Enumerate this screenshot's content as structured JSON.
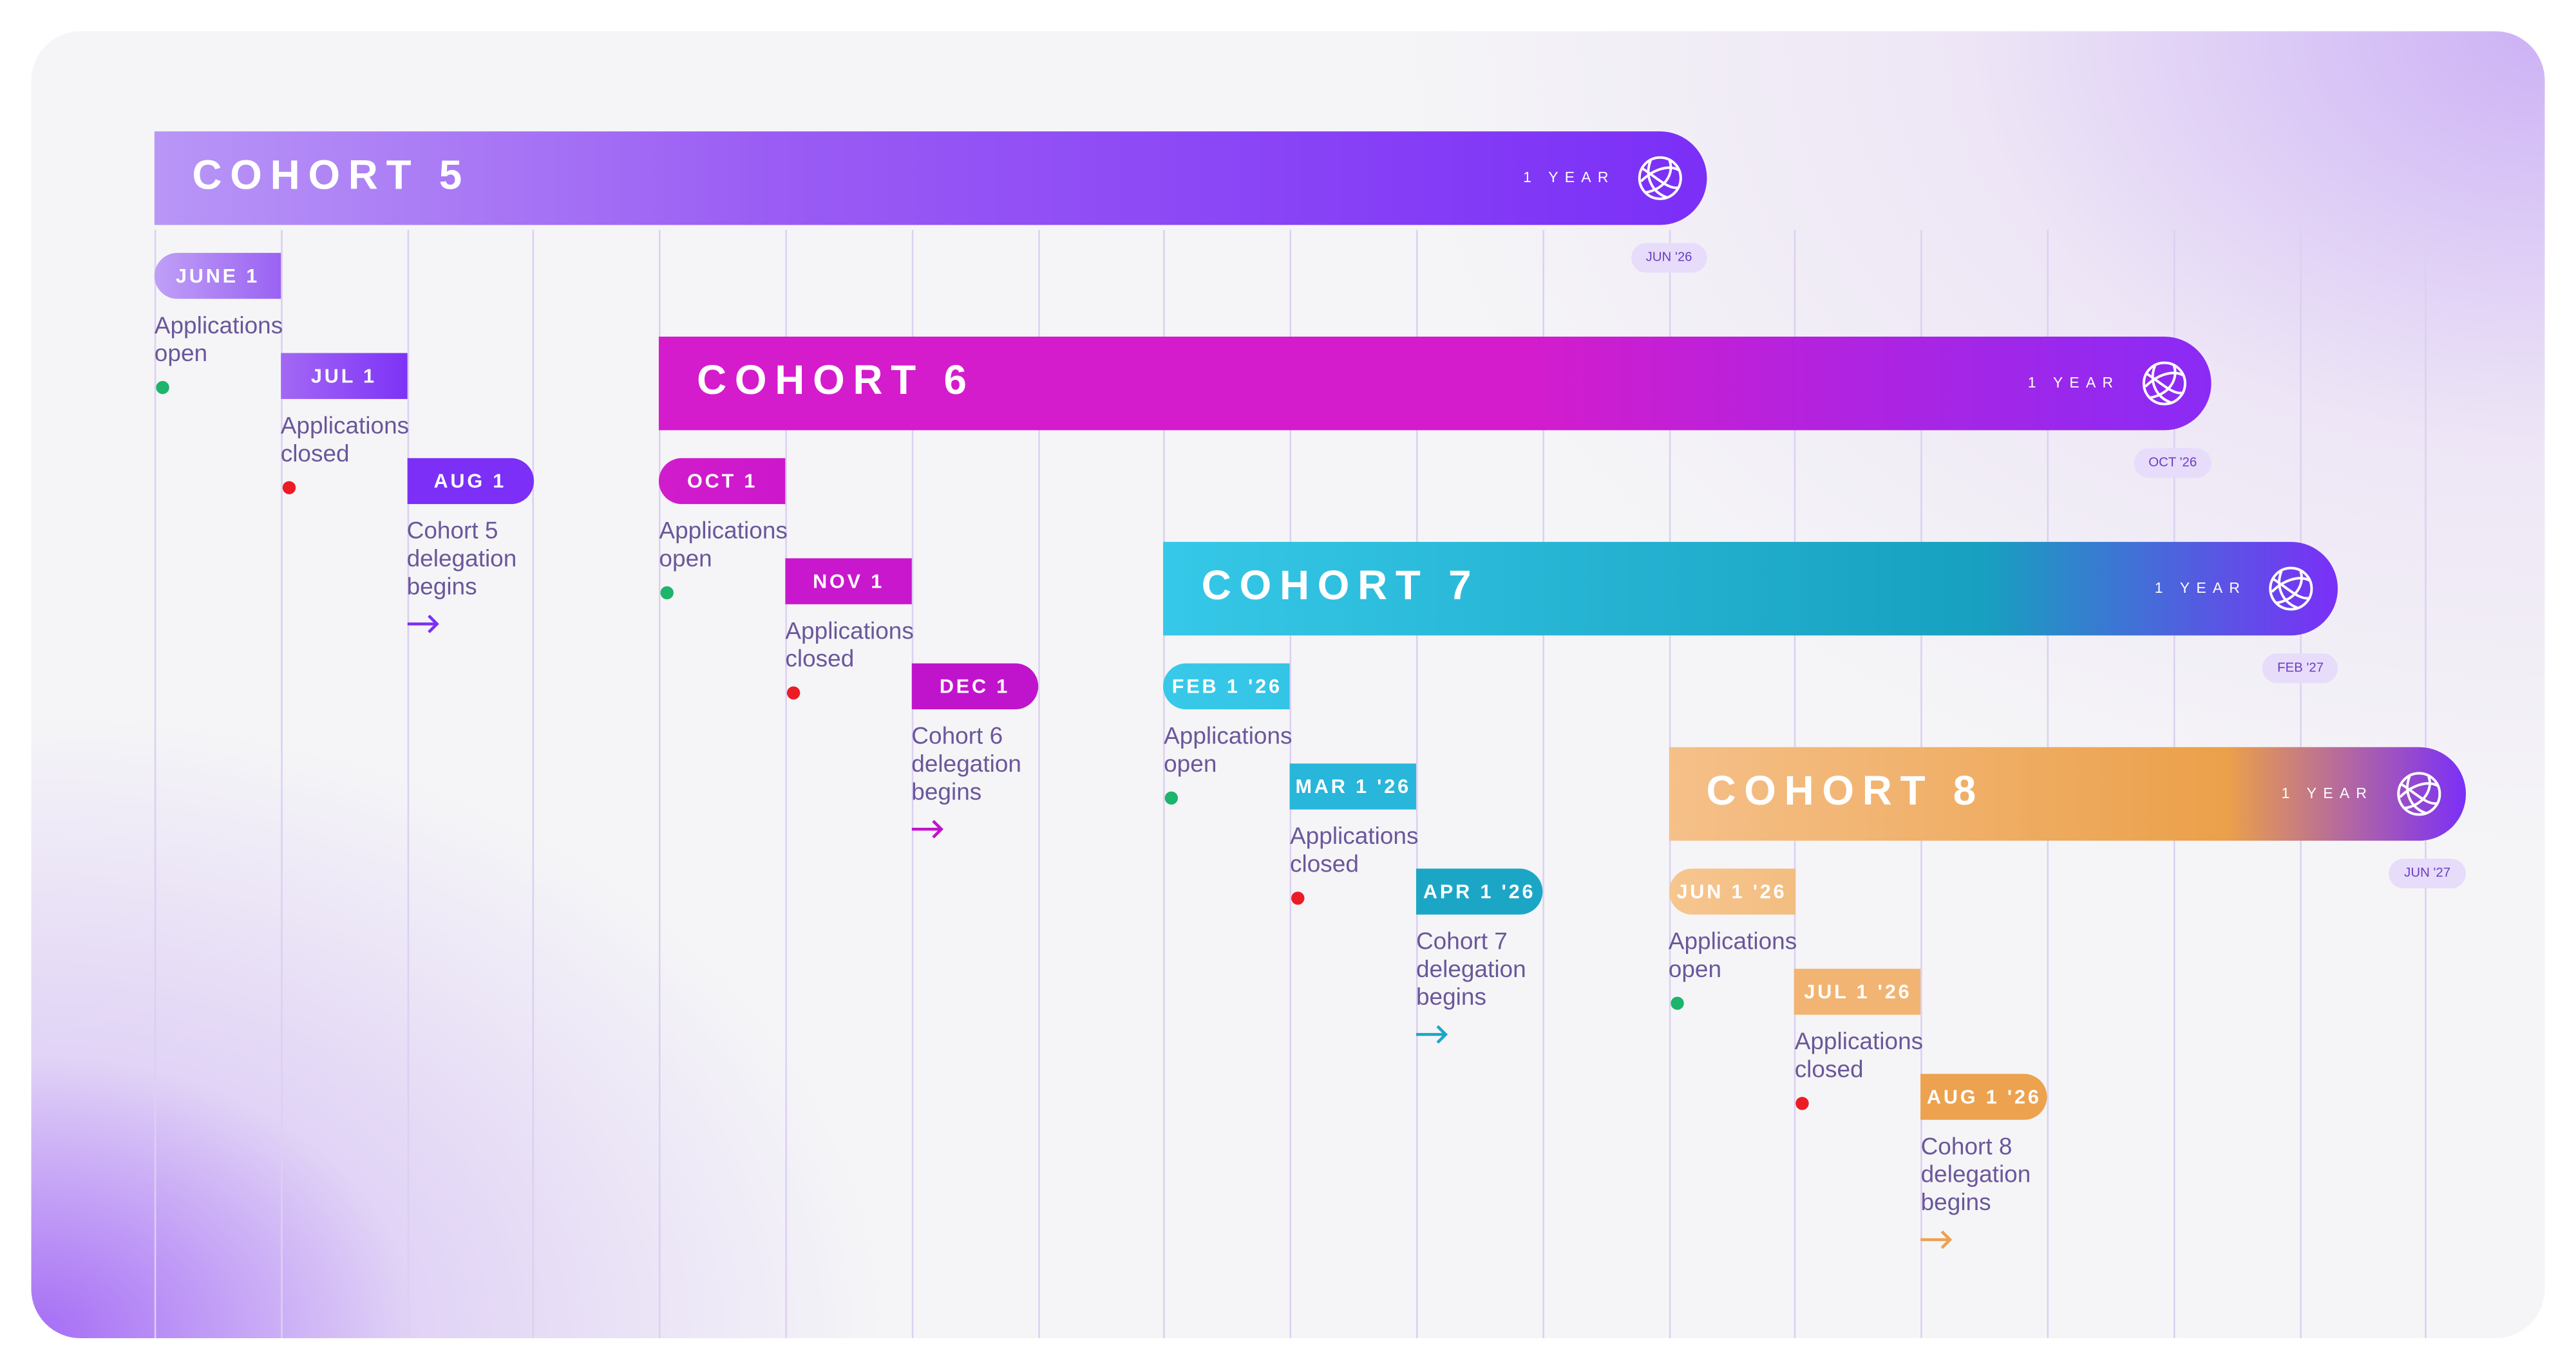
{
  "cohorts": [
    {
      "title": "COHORT 5",
      "duration": "1 YEAR",
      "end": "JUN '26",
      "gradient": [
        "#b896f6",
        "#9a5cf4",
        "#7b2ff7"
      ],
      "milestones": [
        {
          "date": "JUNE 1",
          "label": "Applications open",
          "marker": "green-dot",
          "colors": [
            "#bfa0f6",
            "#9a62f3"
          ]
        },
        {
          "date": "JUL 1",
          "label": "Applications closed",
          "marker": "red-dot",
          "colors": [
            "#a368f4",
            "#7d33f6"
          ]
        },
        {
          "date": "AUG 1",
          "label": "Cohort 5 delegation begins",
          "marker": "arrow",
          "colors": [
            "#7b2ff7",
            "#7b2ff7"
          ]
        }
      ]
    },
    {
      "title": "COHORT 6",
      "duration": "1 YEAR",
      "end": "OCT '26",
      "gradient": [
        "#d41ccc",
        "#d41ccc",
        "#8a2bf5"
      ],
      "milestones": [
        {
          "date": "OCT 1",
          "label": "Applications open",
          "marker": "green-dot",
          "colors": [
            "#d11ccc",
            "#cc17cc"
          ]
        },
        {
          "date": "NOV 1",
          "label": "Applications closed",
          "marker": "red-dot",
          "colors": [
            "#c817cc",
            "#c817cc"
          ]
        },
        {
          "date": "DEC 1",
          "label": "Cohort 6 delegation begins",
          "marker": "arrow",
          "colors": [
            "#c014cc",
            "#c014cc"
          ]
        }
      ]
    },
    {
      "title": "COHORT 7",
      "duration": "1 YEAR",
      "end": "FEB '27",
      "gradient": [
        "#36c8e8",
        "#17a0bf",
        "#7b2ff7"
      ],
      "milestones": [
        {
          "date": "FEB 1 '26",
          "label": "Applications open",
          "marker": "green-dot",
          "colors": [
            "#38c9e9",
            "#34c4e6"
          ]
        },
        {
          "date": "MAR 1 '26",
          "label": "Applications closed",
          "marker": "red-dot",
          "colors": [
            "#28b6da",
            "#28b6da"
          ]
        },
        {
          "date": "APR 1 '26",
          "label": "Cohort 7 delegation begins",
          "marker": "arrow",
          "colors": [
            "#1ca6c6",
            "#1ca6c6"
          ]
        }
      ]
    },
    {
      "title": "COHORT 8",
      "duration": "1 YEAR",
      "end": "JUN '27",
      "gradient": [
        "#f5c089",
        "#eba04a",
        "#7b2ff7"
      ],
      "milestones": [
        {
          "date": "JUN 1 '26",
          "label": "Applications open",
          "marker": "green-dot",
          "colors": [
            "#f6c690",
            "#f3bd80"
          ]
        },
        {
          "date": "JUL 1 '26",
          "label": "Applications closed",
          "marker": "red-dot",
          "colors": [
            "#f2b472",
            "#f2b472"
          ]
        },
        {
          "date": "AUG 1 '26",
          "label": "Cohort 8 delegation begins",
          "marker": "arrow",
          "colors": [
            "#eca24f",
            "#eca24f"
          ]
        }
      ]
    }
  ],
  "colors": {
    "open": "#1db46b",
    "closed": "#ec1c24",
    "text": "#6b579a",
    "grid": "#dcd0f2",
    "end_pill": "#e8dcfb"
  }
}
